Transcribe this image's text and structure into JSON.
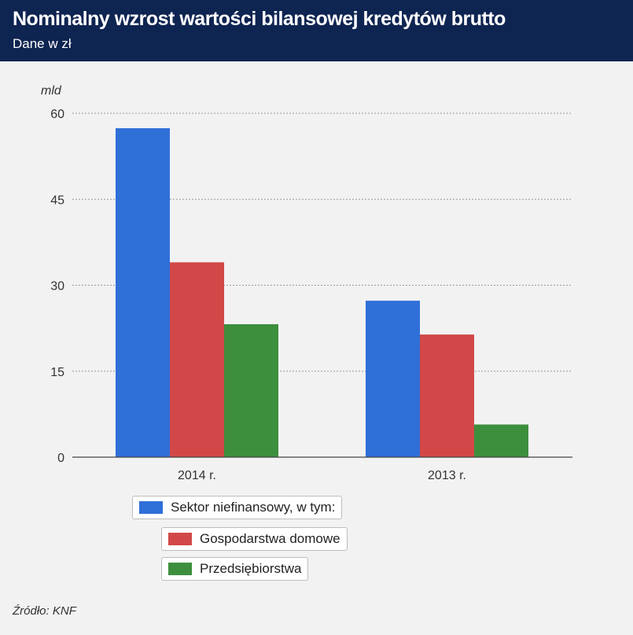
{
  "header": {
    "title": "Nominalny wzrost wartości bilansowej kredytów brutto",
    "subtitle": "Dane w zł"
  },
  "chart_data": {
    "type": "bar",
    "title": "Nominalny wzrost wartości bilansowej kredytów brutto",
    "subtitle": "Dane w zł",
    "ylabel": "mld",
    "xlabel": "",
    "ylim": [
      0,
      60
    ],
    "yticks": [
      0,
      15,
      30,
      45,
      60
    ],
    "grid": true,
    "categories": [
      "2014 r.",
      "2013 r."
    ],
    "series": [
      {
        "name": "Sektor niefinansowy, w tym:",
        "color": "#2f6fd8",
        "values": [
          57.4,
          27.3
        ]
      },
      {
        "name": "Gospodarstwa domowe",
        "color": "#d24848",
        "values": [
          34.0,
          21.4
        ]
      },
      {
        "name": "Przedsiębiorstwa",
        "color": "#3d8f3d",
        "values": [
          23.2,
          5.7
        ]
      }
    ],
    "legend_placement": "bottom"
  },
  "footer": {
    "source": "Źródło: KNF"
  }
}
